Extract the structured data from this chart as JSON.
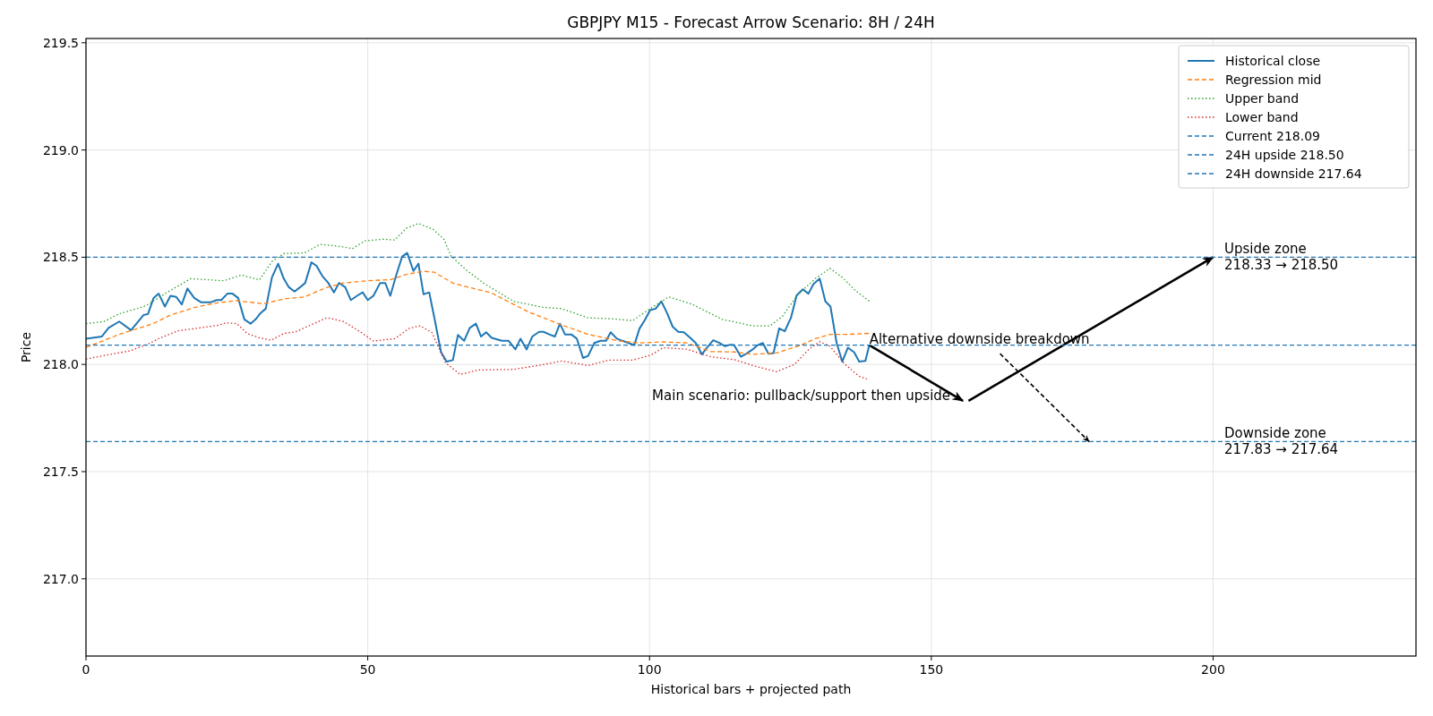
{
  "chart_data": {
    "type": "line",
    "title": "GBPJPY M15 - Forecast Arrow Scenario: 8H / 24H",
    "xlabel": "Historical bars + projected path",
    "ylabel": "Price",
    "xlim": [
      0,
      236
    ],
    "ylim": [
      216.64,
      219.52
    ],
    "xticks": [
      0,
      50,
      100,
      150,
      200
    ],
    "yticks": [
      {
        "value": 217,
        "label": "217.0"
      },
      {
        "value": 217.5,
        "label": "217.5"
      },
      {
        "value": 218,
        "label": "218.0"
      },
      {
        "value": 218.5,
        "label": "218.5"
      },
      {
        "value": 219,
        "label": "219.0"
      },
      {
        "value": 219.5,
        "label": "219.5"
      }
    ],
    "grid": true,
    "legend": "top right",
    "marker": "none",
    "series": [
      {
        "name": "Historical close",
        "color": "#1f77b4",
        "line_style": "solid",
        "x": [
          0,
          2.8,
          4,
          5.9,
          8,
          10.2,
          11,
          12,
          12.9,
          14,
          15,
          16,
          17,
          18,
          19.2,
          20.4,
          21.4,
          22.2,
          23.2,
          24,
          25.1,
          26,
          27,
          28.1,
          29.2,
          30.1,
          31,
          31.9,
          33,
          34.1,
          35.1,
          36,
          37,
          38,
          38.9,
          40,
          40.9,
          42,
          43,
          44,
          44.9,
          46,
          47,
          48.1,
          49.1,
          50,
          51,
          52.2,
          53.1,
          54,
          55.1,
          56.1,
          57,
          58.1,
          59,
          59.9,
          60.9,
          61.8,
          63,
          64,
          65.1,
          66,
          67.1,
          68.1,
          69.2,
          70.1,
          71,
          72,
          73.8,
          75,
          76.2,
          77.1,
          78.2,
          79.2,
          80.4,
          81.2,
          82.2,
          83.2,
          84.1,
          85,
          86.1,
          87.1,
          88.2,
          89.1,
          90.2,
          91.3,
          92.3,
          93.1,
          94.2,
          95.2,
          96.3,
          97.3,
          98.2,
          99.2,
          100.1,
          101.1,
          102.1,
          103.1,
          104.1,
          105.1,
          106.1,
          107.1,
          108.2,
          109.3,
          110.2,
          111.3,
          112.4,
          113.4,
          114.3,
          115,
          116.2,
          117.2,
          118.3,
          119.2,
          120.1,
          121.1,
          122,
          123,
          124,
          125.1,
          126.1,
          127.2,
          128.2,
          129.1,
          130.2,
          131.2,
          132.1,
          133.2,
          134.2,
          135.2,
          136.3,
          137.2,
          138.3,
          139
        ],
        "values": [
          218.12,
          218.13,
          218.17,
          218.2,
          218.16,
          218.23,
          218.235,
          218.31,
          218.33,
          218.27,
          218.32,
          218.315,
          218.28,
          218.354,
          218.31,
          218.29,
          218.29,
          218.29,
          218.3,
          218.3,
          218.33,
          218.33,
          218.31,
          218.21,
          218.19,
          218.21,
          218.24,
          218.26,
          218.406,
          218.47,
          218.4,
          218.36,
          218.34,
          218.36,
          218.38,
          218.476,
          218.46,
          218.41,
          218.38,
          218.336,
          218.38,
          218.36,
          218.3,
          218.32,
          218.336,
          218.3,
          218.32,
          218.38,
          218.38,
          218.32,
          218.42,
          218.503,
          218.52,
          218.436,
          218.47,
          218.327,
          218.336,
          218.22,
          218.057,
          218.013,
          218.02,
          218.137,
          218.11,
          218.17,
          218.19,
          218.13,
          218.15,
          218.124,
          218.11,
          218.11,
          218.07,
          218.12,
          218.07,
          218.13,
          218.152,
          218.152,
          218.14,
          218.13,
          218.19,
          218.14,
          218.14,
          218.12,
          218.03,
          218.04,
          218.1,
          218.11,
          218.11,
          218.15,
          218.12,
          218.11,
          218.1,
          218.09,
          218.166,
          218.208,
          218.253,
          218.26,
          218.294,
          218.24,
          218.176,
          218.152,
          218.15,
          218.127,
          218.1,
          218.047,
          218.078,
          218.113,
          218.1,
          218.085,
          218.092,
          218.09,
          218.036,
          218.05,
          218.07,
          218.09,
          218.1,
          218.05,
          218.053,
          218.168,
          218.155,
          218.218,
          218.322,
          218.35,
          218.33,
          218.375,
          218.4,
          218.294,
          218.27,
          218.1,
          218.013,
          218.078,
          218.057,
          218.013,
          218.016,
          218.09
        ]
      },
      {
        "name": "Regression mid",
        "color": "#ff7f0e",
        "line_style": "dashed",
        "x": [
          0,
          5.9,
          11.9,
          15,
          19.3,
          23.5,
          26.7,
          31.5,
          35.1,
          38.8,
          42.5,
          45.7,
          50,
          54.2,
          56.8,
          60,
          61.8,
          65.2,
          68.4,
          72,
          73.8,
          78.5,
          83.8,
          89.1,
          94.4,
          98.2,
          102.4,
          106.6,
          110.9,
          115.1,
          118.3,
          122.5,
          126.7,
          129.4,
          132,
          135.2,
          139.2
        ],
        "values": [
          218.079,
          218.14,
          218.19,
          218.23,
          218.266,
          218.288,
          218.297,
          218.283,
          218.305,
          218.315,
          218.357,
          218.38,
          218.39,
          218.396,
          218.42,
          218.434,
          218.43,
          218.378,
          218.357,
          218.333,
          218.308,
          218.245,
          218.19,
          218.14,
          218.11,
          218.1,
          218.105,
          218.1,
          218.06,
          218.058,
          218.047,
          218.053,
          218.088,
          218.12,
          218.14,
          218.14,
          218.145
        ]
      },
      {
        "name": "Upper band",
        "color": "#2ca02c",
        "line_style": "dotted",
        "x": [
          0,
          3.2,
          5.9,
          10.6,
          14.9,
          18.6,
          24.4,
          27.6,
          30.8,
          33,
          35.1,
          38.8,
          41.5,
          44.7,
          47.3,
          49.5,
          52.7,
          54.8,
          56.9,
          59,
          61.6,
          63.5,
          64.8,
          67.5,
          70.6,
          75.9,
          81.2,
          84.4,
          89.1,
          93.3,
          97,
          99.7,
          103.4,
          107.6,
          112.9,
          118.3,
          121.4,
          123.6,
          126.2,
          129.4,
          132,
          134.2,
          136.3,
          139.2
        ],
        "values": [
          218.19,
          218.2,
          218.236,
          218.273,
          218.344,
          218.4,
          218.39,
          218.417,
          218.394,
          218.48,
          218.517,
          218.52,
          218.56,
          218.552,
          218.54,
          218.576,
          218.584,
          218.58,
          218.636,
          218.657,
          218.63,
          218.584,
          218.504,
          218.44,
          218.378,
          218.294,
          218.266,
          218.26,
          218.217,
          218.213,
          218.204,
          218.253,
          218.315,
          218.28,
          218.21,
          218.18,
          218.18,
          218.225,
          218.322,
          218.4,
          218.448,
          218.406,
          218.35,
          218.29
        ]
      },
      {
        "name": "Lower band",
        "color": "#d62728",
        "line_style": "dotted",
        "x": [
          0,
          4.2,
          7.9,
          11.1,
          13.2,
          16.4,
          20.1,
          23.3,
          24.9,
          26.8,
          28.6,
          30.8,
          32.9,
          35.1,
          37.2,
          40.4,
          42.8,
          45.7,
          48.9,
          51,
          54.8,
          57.4,
          59.3,
          61.4,
          63.8,
          66.4,
          69.6,
          75.9,
          80.2,
          84.4,
          89.1,
          92.8,
          97,
          100.2,
          102.4,
          106.6,
          110.9,
          115.1,
          118.3,
          122.5,
          125.7,
          128.3,
          130.2,
          132,
          134.7,
          137.1,
          138.9
        ],
        "values": [
          218.025,
          218.046,
          218.064,
          218.096,
          218.124,
          218.157,
          218.17,
          218.182,
          218.194,
          218.19,
          218.144,
          218.124,
          218.113,
          218.144,
          218.152,
          218.19,
          218.218,
          218.2,
          218.148,
          218.109,
          218.12,
          218.169,
          218.18,
          218.148,
          218.008,
          217.953,
          217.974,
          217.977,
          217.995,
          218.016,
          217.995,
          218.02,
          218.02,
          218.043,
          218.078,
          218.071,
          218.036,
          218.022,
          217.995,
          217.966,
          218,
          218.071,
          218.106,
          218.085,
          218,
          217.946,
          217.929
        ]
      },
      {
        "color": "#000000",
        "line_style": "solid",
        "x": [
          139,
          155.6
        ],
        "values": [
          218.09,
          217.83
        ]
      },
      {
        "color": "#000000",
        "line_style": "solid",
        "x": [
          156.6,
          200
        ],
        "values": [
          217.83,
          218.5
        ]
      },
      {
        "color": "#000000",
        "line_style": "dashed",
        "x": [
          162.2,
          178
        ],
        "values": [
          218.05,
          217.64
        ]
      }
    ],
    "ref_lines": [
      {
        "axis": "y",
        "value": 218.09,
        "label": "Current 218.09",
        "color": "#1f77b4",
        "line_style": "dashed"
      },
      {
        "axis": "y",
        "value": 218.5,
        "label": "24H upside 218.50",
        "color": "#1f77b4",
        "line_style": "dashed"
      },
      {
        "axis": "y",
        "value": 217.64,
        "label": "24H downside 217.64",
        "color": "#1f77b4",
        "line_style": "dashed"
      }
    ],
    "annotations": [
      {
        "text": "Main scenario: pullback/support then upside",
        "x": 155.6,
        "y": 217.83
      },
      {
        "text": "Alternative downside breakdown",
        "x": 139,
        "y": 218.09
      },
      {
        "text": "Upside zone\n218.33 → 218.50",
        "x": 202,
        "y": 218.5
      },
      {
        "text": "Downside zone\n217.83 → 217.64",
        "x": 202,
        "y": 217.64
      }
    ]
  }
}
